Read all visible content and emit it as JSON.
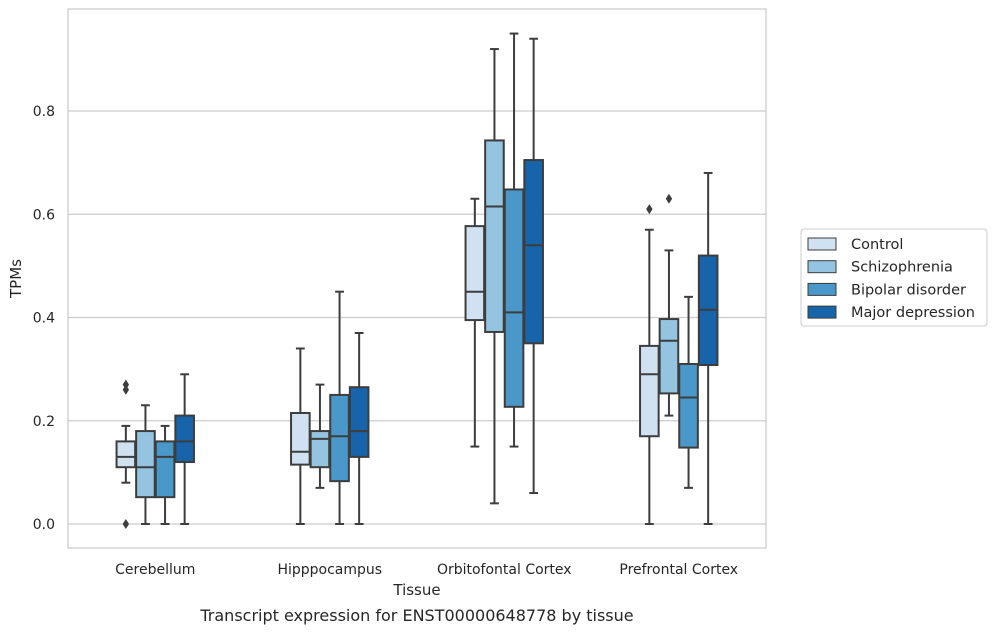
{
  "caption": "Transcript expression for ENST00000648778 by tissue",
  "chart_data": {
    "type": "box",
    "xlabel": "Tissue",
    "ylabel": "TPMs",
    "ylim": [
      -0.045,
      0.99
    ],
    "yticks": [
      0.0,
      0.2,
      0.4,
      0.6,
      0.8
    ],
    "grid": "horizontal",
    "legend_position": "right",
    "categories": [
      "Cerebellum",
      "Hipppocampus",
      "Orbitofontal Cortex",
      "Prefrontal Cortex"
    ],
    "series": [
      {
        "name": "Control",
        "color": "#d0e1f2",
        "boxes": [
          {
            "whislo": 0.08,
            "q1": 0.11,
            "med": 0.13,
            "q3": 0.16,
            "whishi": 0.19,
            "fliers": [
              0.27,
              0.26,
              0.0
            ]
          },
          {
            "whislo": 0.0,
            "q1": 0.115,
            "med": 0.14,
            "q3": 0.215,
            "whishi": 0.34,
            "fliers": []
          },
          {
            "whislo": 0.15,
            "q1": 0.395,
            "med": 0.45,
            "q3": 0.577,
            "whishi": 0.63,
            "fliers": []
          },
          {
            "whislo": 0.0,
            "q1": 0.17,
            "med": 0.29,
            "q3": 0.345,
            "whishi": 0.57,
            "fliers": [
              0.61
            ]
          }
        ]
      },
      {
        "name": "Schizophrenia",
        "color": "#94c4df",
        "boxes": [
          {
            "whislo": 0.0,
            "q1": 0.052,
            "med": 0.11,
            "q3": 0.18,
            "whishi": 0.23,
            "fliers": []
          },
          {
            "whislo": 0.07,
            "q1": 0.11,
            "med": 0.165,
            "q3": 0.18,
            "whishi": 0.27,
            "fliers": []
          },
          {
            "whislo": 0.04,
            "q1": 0.372,
            "med": 0.615,
            "q3": 0.743,
            "whishi": 0.92,
            "fliers": []
          },
          {
            "whislo": 0.21,
            "q1": 0.253,
            "med": 0.355,
            "q3": 0.397,
            "whishi": 0.53,
            "fliers": [
              0.63
            ]
          }
        ]
      },
      {
        "name": "Bipolar disorder",
        "color": "#4a98c9",
        "boxes": [
          {
            "whislo": 0.0,
            "q1": 0.052,
            "med": 0.13,
            "q3": 0.16,
            "whishi": 0.19,
            "fliers": []
          },
          {
            "whislo": 0.0,
            "q1": 0.083,
            "med": 0.17,
            "q3": 0.25,
            "whishi": 0.45,
            "fliers": []
          },
          {
            "whislo": 0.15,
            "q1": 0.227,
            "med": 0.41,
            "q3": 0.648,
            "whishi": 0.95,
            "fliers": []
          },
          {
            "whislo": 0.07,
            "q1": 0.148,
            "med": 0.245,
            "q3": 0.31,
            "whishi": 0.44,
            "fliers": []
          }
        ]
      },
      {
        "name": "Major depression",
        "color": "#1764ab",
        "boxes": [
          {
            "whislo": 0.0,
            "q1": 0.12,
            "med": 0.16,
            "q3": 0.21,
            "whishi": 0.29,
            "fliers": []
          },
          {
            "whislo": 0.0,
            "q1": 0.13,
            "med": 0.18,
            "q3": 0.265,
            "whishi": 0.37,
            "fliers": []
          },
          {
            "whislo": 0.06,
            "q1": 0.35,
            "med": 0.54,
            "q3": 0.705,
            "whishi": 0.94,
            "fliers": []
          },
          {
            "whislo": 0.0,
            "q1": 0.308,
            "med": 0.415,
            "q3": 0.52,
            "whishi": 0.68,
            "fliers": []
          }
        ]
      }
    ]
  }
}
